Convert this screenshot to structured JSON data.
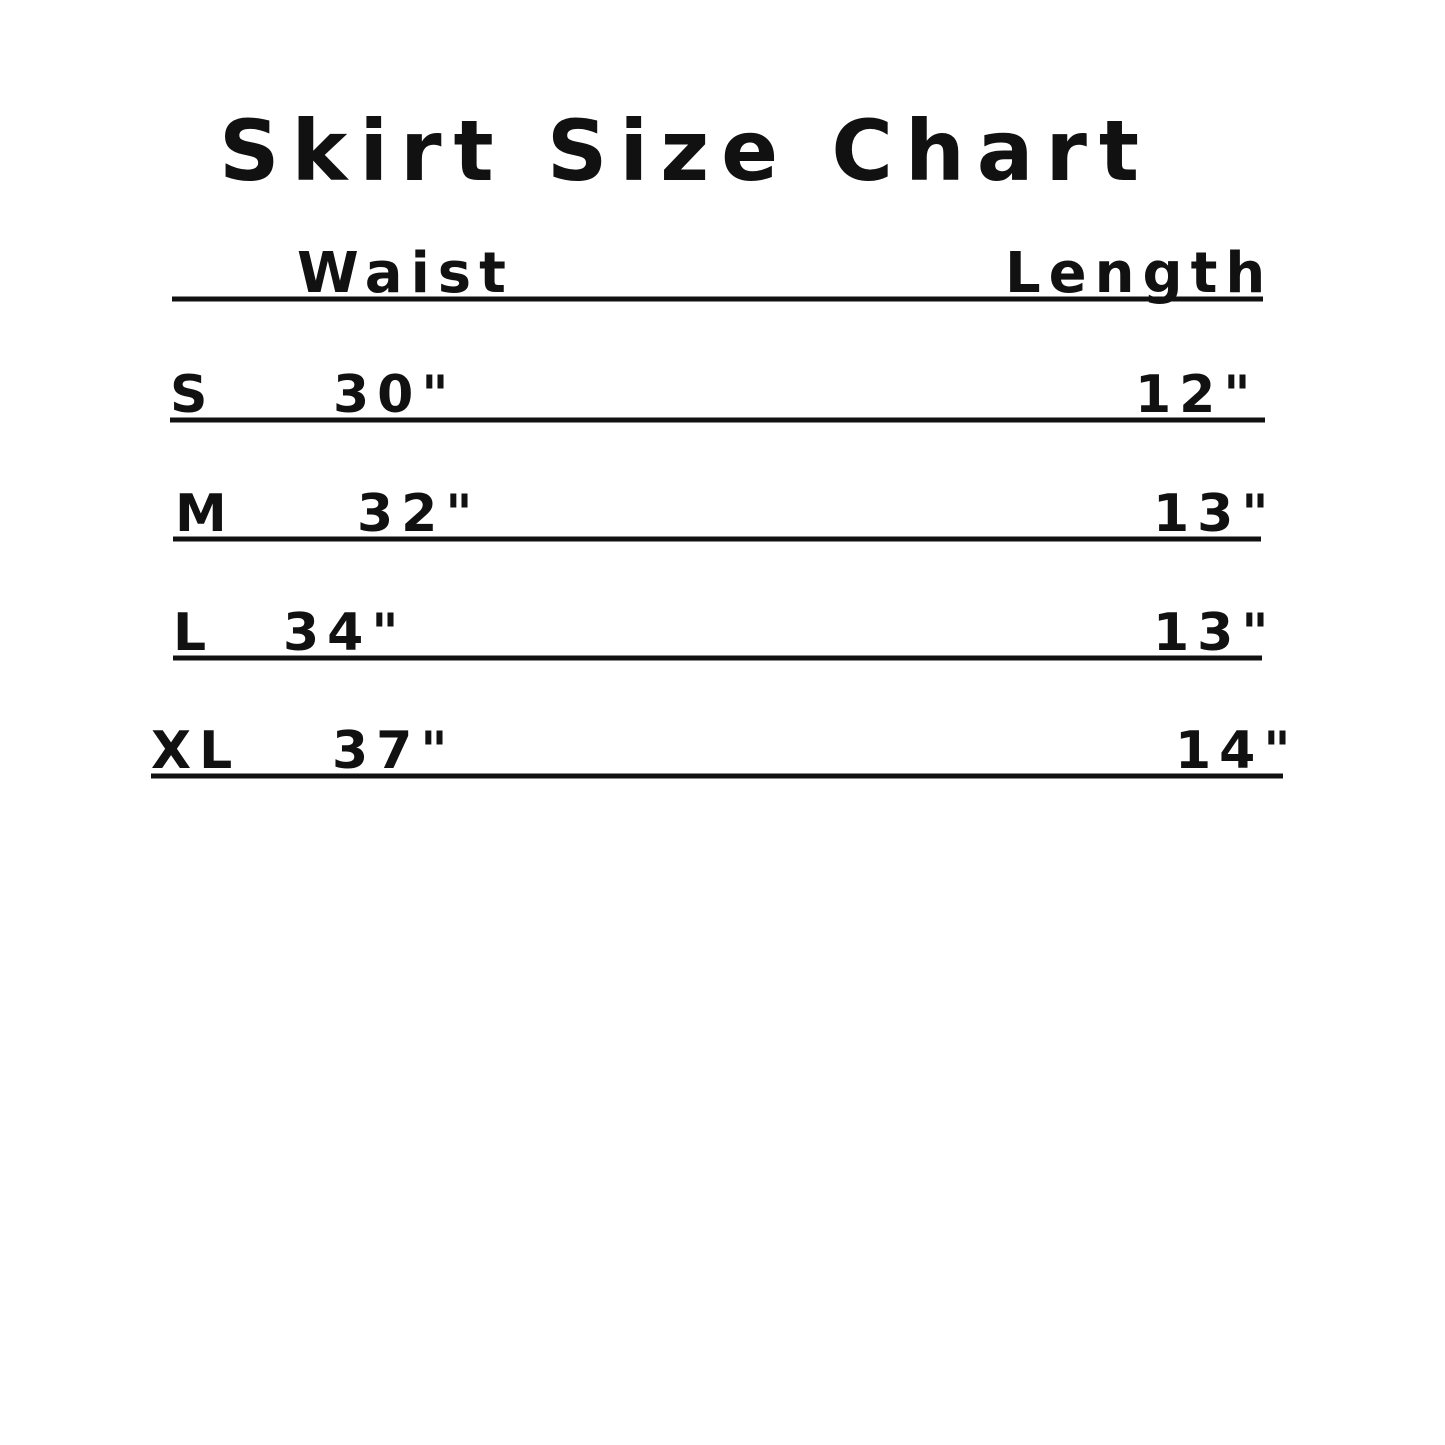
{
  "title": "Skirt Size Chart",
  "table": {
    "header": [
      "Waist",
      "Length"
    ],
    "rows": [
      [
        "S",
        "30\"",
        "12\""
      ],
      [
        "M",
        "32\"",
        "13\""
      ],
      [
        "L",
        "34\"",
        "13\""
      ],
      [
        "XL",
        "37\"",
        "14\""
      ]
    ]
  }
}
